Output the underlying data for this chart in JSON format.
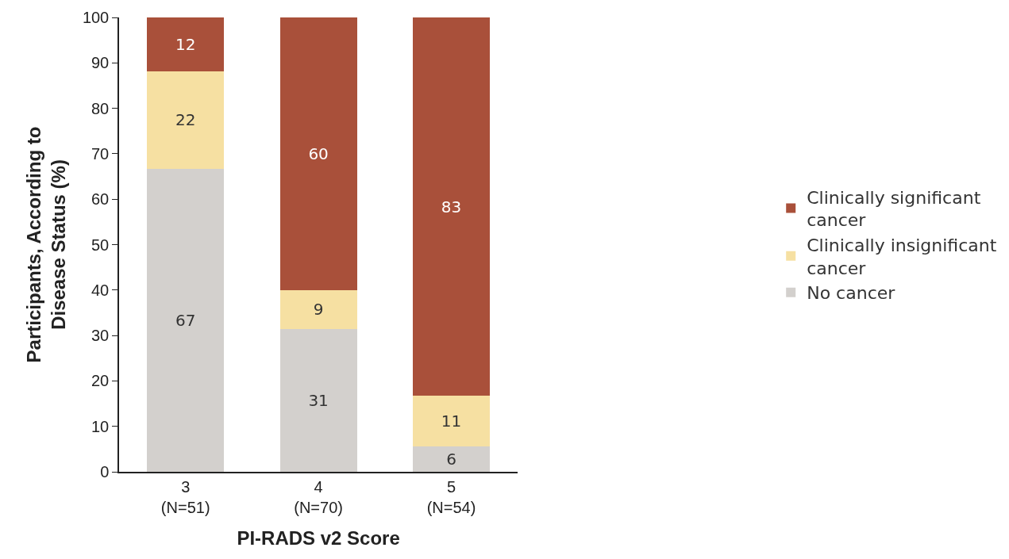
{
  "chart_data": {
    "type": "bar",
    "stacked": true,
    "xlabel": "PI-RADS v2 Score",
    "ylabel": "Participants, According to\nDisease Status (%)",
    "categories": [
      "3\n(N=51)",
      "4\n(N=70)",
      "5\n(N=54)"
    ],
    "series": [
      {
        "name": "No cancer",
        "color": "#d3d0cd",
        "values": [
          66.7,
          31.4,
          5.6
        ],
        "value_labels": [
          "67",
          "31",
          "6"
        ]
      },
      {
        "name": "Clinically insignificant cancer",
        "color": "#f6e0a2",
        "values": [
          21.5,
          8.6,
          11.1
        ],
        "value_labels": [
          "22",
          "9",
          "11"
        ]
      },
      {
        "name": "Clinically significant cancer",
        "color": "#a9503a",
        "values": [
          11.8,
          60,
          83.3
        ],
        "value_labels": [
          "12",
          "60",
          "83"
        ]
      }
    ],
    "ylim": [
      0,
      100
    ],
    "yticks": [
      0,
      10,
      20,
      30,
      40,
      50,
      60,
      70,
      80,
      90,
      100
    ],
    "grid": false,
    "legend": "right"
  }
}
